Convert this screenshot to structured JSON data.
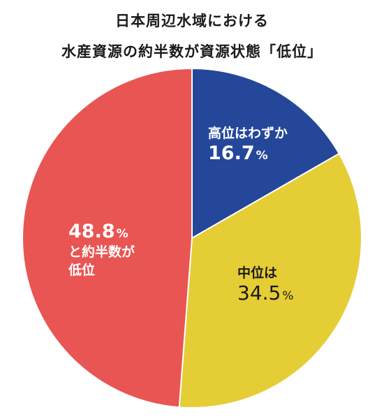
{
  "chart_data": {
    "type": "pie",
    "title_lines": [
      "日本周辺水域における",
      "水産資源の約半数が資源状態「低位」"
    ],
    "slices": [
      {
        "label": "高位はわずか",
        "value": 16.7,
        "color": "#24479a"
      },
      {
        "label": "中位は",
        "value": 34.5,
        "color": "#e5cd35"
      },
      {
        "label_lines": [
          "と約半数が",
          "低位"
        ],
        "value": 48.8,
        "color": "#e85552"
      }
    ],
    "value_texts": [
      "16.7",
      "34.5",
      "48.8"
    ],
    "unit": "%"
  }
}
